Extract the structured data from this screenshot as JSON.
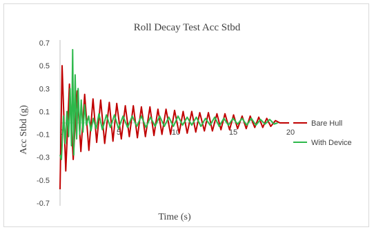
{
  "chart_data": {
    "type": "line",
    "title": "Roll Decay Test Acc Stbd",
    "xlabel": "Time (s)",
    "ylabel": "Acc Stbd (g)",
    "xlim": [
      0,
      20
    ],
    "ylim": [
      -0.7,
      0.7
    ],
    "x_ticks": [
      "0",
      "5",
      "10",
      "15",
      "20"
    ],
    "y_ticks": [
      "-0.7",
      "-0.5",
      "-0.3",
      "-0.1",
      "0.1",
      "0.3",
      "0.5",
      "0.7"
    ],
    "grid": false,
    "legend_position": "right",
    "series": [
      {
        "name": "Bare Hull",
        "color": "#c00000",
        "x": [
          0,
          0.18,
          0.5,
          0.82,
          1.15,
          1.5,
          1.82,
          2.15,
          2.52,
          2.88,
          3.2,
          3.55,
          3.9,
          4.3,
          4.62,
          4.95,
          5.35,
          5.7,
          6.05,
          6.4,
          6.75,
          7.1,
          7.45,
          7.85,
          8.2,
          8.55,
          8.9,
          9.25,
          9.65,
          10.0,
          10.4,
          10.75,
          11.1,
          11.5,
          11.85,
          12.2,
          12.6,
          12.95,
          13.3,
          13.7,
          14.05,
          14.4,
          14.8,
          15.15,
          15.5,
          15.9,
          16.25,
          16.6,
          17.0,
          17.35,
          17.7,
          18.05,
          18.4,
          18.8,
          19.2,
          20.0
        ],
        "values": [
          -0.58,
          0.5,
          -0.42,
          0.34,
          -0.32,
          0.28,
          -0.25,
          0.25,
          -0.24,
          0.21,
          -0.17,
          0.2,
          -0.18,
          0.18,
          -0.16,
          0.17,
          -0.14,
          0.15,
          -0.12,
          0.15,
          -0.13,
          0.14,
          -0.12,
          0.14,
          -0.11,
          0.12,
          -0.1,
          0.12,
          -0.1,
          0.11,
          -0.09,
          0.1,
          -0.09,
          0.1,
          -0.08,
          0.09,
          -0.07,
          0.09,
          -0.07,
          0.08,
          -0.06,
          0.08,
          -0.06,
          0.07,
          -0.05,
          0.06,
          -0.05,
          0.06,
          -0.04,
          0.05,
          -0.04,
          0.04,
          -0.03,
          0.02,
          0.0,
          0.0
        ]
      },
      {
        "name": "With Device",
        "color": "#2db84b",
        "x": [
          0,
          0.12,
          0.3,
          0.45,
          0.6,
          0.75,
          0.88,
          1.0,
          1.1,
          1.2,
          1.32,
          1.45,
          1.58,
          1.72,
          1.85,
          2.0,
          2.15,
          2.3,
          2.5,
          2.7,
          2.9,
          3.15,
          3.4,
          3.7,
          4.05,
          4.4,
          4.75,
          5.1,
          5.5,
          5.9,
          6.3,
          6.7,
          7.1,
          7.5,
          7.9,
          8.3,
          8.7,
          9.1,
          9.5,
          9.9,
          10.3,
          10.7,
          11.1,
          11.5,
          11.9,
          12.3,
          12.7,
          13.1,
          13.5,
          13.9,
          14.3,
          14.7,
          15.1,
          15.5,
          15.9,
          16.3,
          16.7,
          17.1,
          17.5,
          17.9,
          18.3,
          18.7,
          19.0
        ],
        "values": [
          -0.28,
          -0.32,
          0.06,
          -0.18,
          0.1,
          -0.12,
          0.3,
          -0.2,
          0.64,
          -0.28,
          0.42,
          -0.14,
          0.3,
          -0.1,
          0.2,
          -0.08,
          0.16,
          -0.02,
          0.06,
          -0.07,
          0.04,
          -0.05,
          0.08,
          -0.06,
          0.07,
          -0.04,
          0.07,
          -0.05,
          0.06,
          -0.04,
          0.06,
          -0.03,
          0.06,
          -0.04,
          0.05,
          -0.03,
          0.06,
          -0.03,
          0.05,
          -0.03,
          0.06,
          -0.02,
          0.05,
          -0.02,
          0.05,
          -0.03,
          0.04,
          -0.02,
          0.05,
          -0.03,
          0.04,
          -0.02,
          0.04,
          -0.01,
          0.04,
          -0.02,
          0.04,
          -0.02,
          0.03,
          -0.01,
          0.03,
          -0.01,
          0.0
        ]
      }
    ]
  }
}
